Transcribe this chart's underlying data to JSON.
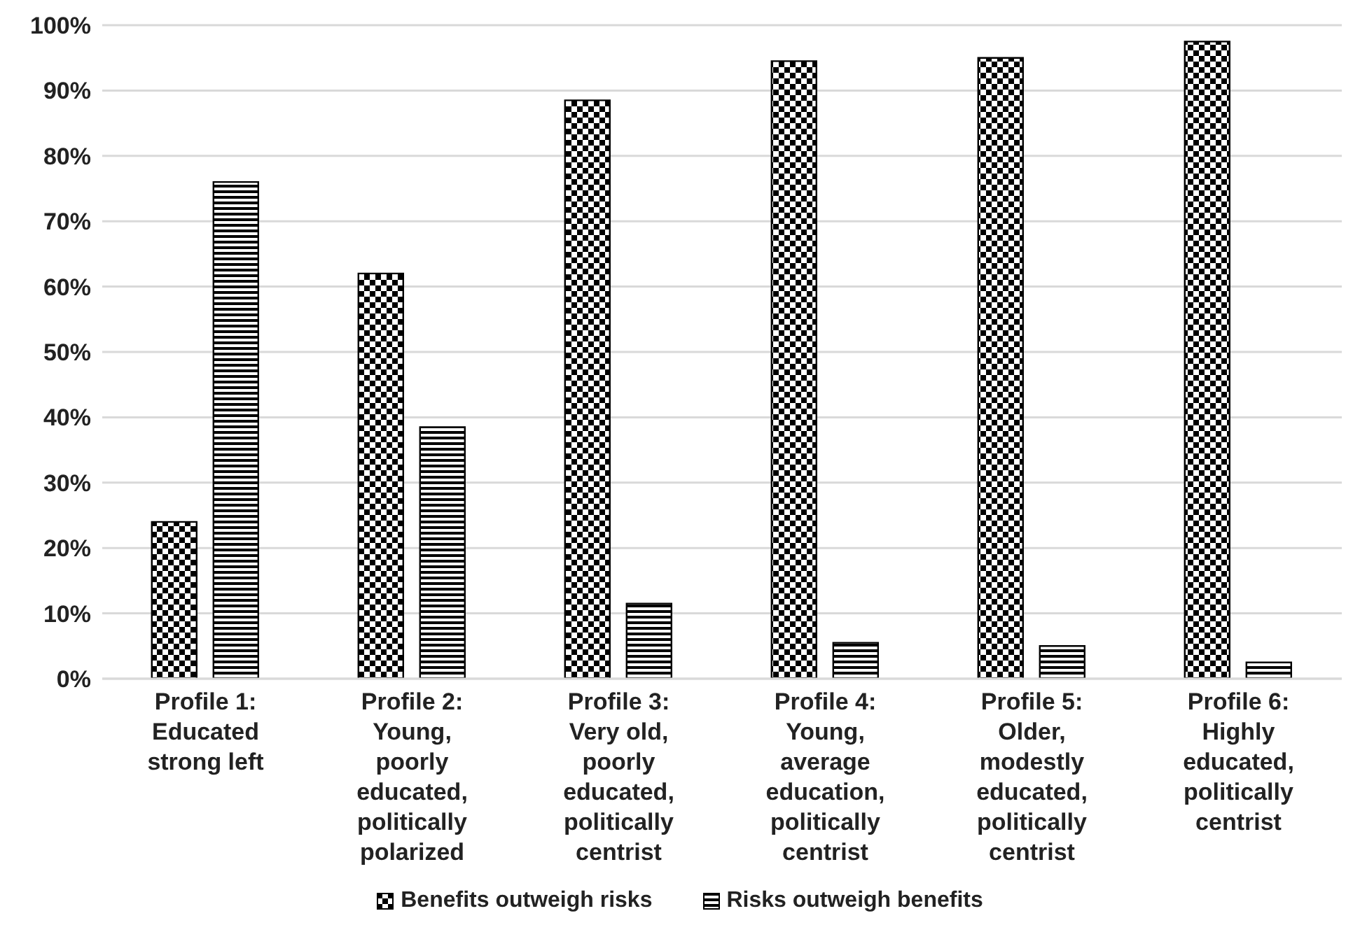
{
  "chart_data": {
    "type": "bar",
    "categories": [
      "Profile 1: Educated strong left",
      "Profile 2: Young, poorly educated, politically polarized",
      "Profile 3: Very old, poorly educated, politically centrist",
      "Profile 4: Young, average education, politically centrist",
      "Profile 5: Older, modestly educated, politically centrist",
      "Profile 6: Highly educated, politically centrist"
    ],
    "series": [
      {
        "name": "Benefits outweigh risks",
        "color": "#000000",
        "values": [
          24,
          62,
          88.5,
          94.5,
          95,
          97.5
        ]
      },
      {
        "name": "Risks outweigh benefits",
        "color": "#000000",
        "values": [
          76,
          38.5,
          11.5,
          5.5,
          5,
          2.5
        ]
      }
    ],
    "ylim": [
      0,
      100
    ],
    "yticks": [
      {
        "value": 0,
        "label": "0%"
      },
      {
        "value": 10,
        "label": "10%"
      },
      {
        "value": 20,
        "label": "20%"
      },
      {
        "value": 30,
        "label": "30%"
      },
      {
        "value": 40,
        "label": "40%"
      },
      {
        "value": 50,
        "label": "50%"
      },
      {
        "value": 60,
        "label": "60%"
      },
      {
        "value": 70,
        "label": "70%"
      },
      {
        "value": 80,
        "label": "80%"
      },
      {
        "value": 90,
        "label": "90%"
      },
      {
        "value": 100,
        "label": "100%"
      }
    ],
    "grid": "y",
    "legend": "bottom"
  }
}
